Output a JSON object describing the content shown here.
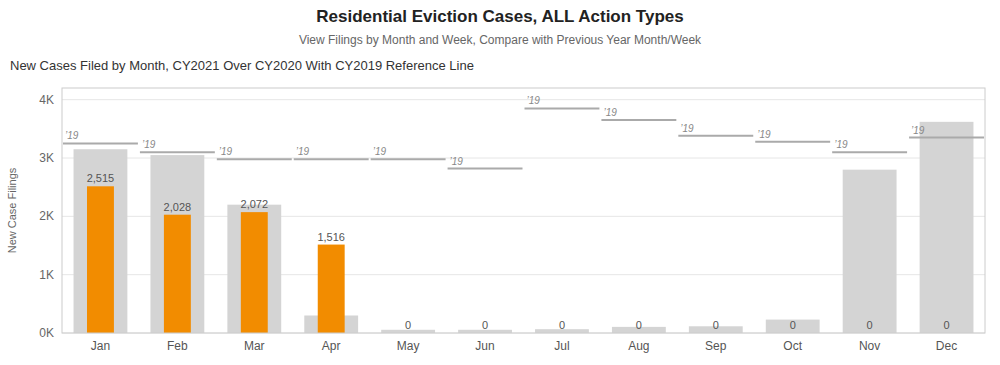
{
  "chart_data": {
    "type": "bar",
    "title": "Residential Eviction Cases, ALL Action Types",
    "subtitle": "View Filings by Month and Week, Compare with Previous Year Month/Week",
    "annotations": [
      "New Cases Filed by Month, CY2021 Over CY2020 With CY2019 Reference Line"
    ],
    "y_label": "New Case Filings",
    "categories": [
      "Jan",
      "Feb",
      "Mar",
      "Apr",
      "May",
      "Jun",
      "Jul",
      "Aug",
      "Sep",
      "Oct",
      "Nov",
      "Dec"
    ],
    "series": [
      {
        "type": "bar",
        "color": "#D4D4D4",
        "values": [
          3150,
          3050,
          2200,
          300,
          55,
          55,
          65,
          105,
          115,
          230,
          2800,
          3620
        ]
      },
      {
        "type": "bar",
        "color": "#F28C00",
        "values": [
          2515,
          2028,
          2072,
          1516,
          0,
          0,
          0,
          0,
          0,
          0,
          0,
          0
        ],
        "data_labels": true,
        "value_labels": [
          "2,515",
          "2,028",
          "2,072",
          "1,516",
          "0",
          "0",
          "0",
          "0",
          "0",
          "0",
          "0",
          "0"
        ]
      },
      {
        "type": "line",
        "line_style": "segment",
        "color": "#AAAAAA",
        "annotation": "’19",
        "values": [
          3250,
          3100,
          2980,
          2980,
          2980,
          2820,
          3850,
          3650,
          3380,
          3280,
          3100,
          3350
        ]
      }
    ],
    "ylim": [
      0,
      4200
    ],
    "yticks": [
      {
        "value": 0,
        "label": "0K"
      },
      {
        "value": 1000,
        "label": "1K"
      },
      {
        "value": 2000,
        "label": "2K"
      },
      {
        "value": 3000,
        "label": "3K"
      },
      {
        "value": 4000,
        "label": "4K"
      }
    ],
    "grid": true
  }
}
